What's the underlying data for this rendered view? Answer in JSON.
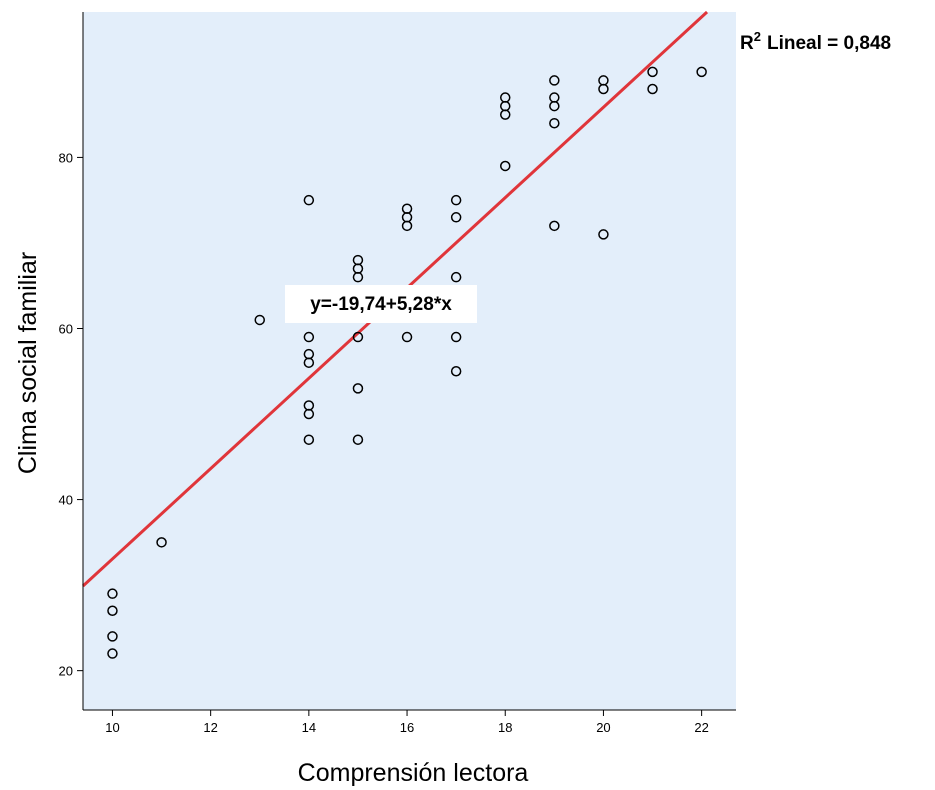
{
  "chart_data": {
    "type": "scatter",
    "xlabel": "Comprensión lectora",
    "ylabel": "Clima social familiar",
    "xlim": [
      9.4,
      22.7
    ],
    "ylim": [
      15.4,
      97.0
    ],
    "xticks": [
      10,
      12,
      14,
      16,
      18,
      20,
      22
    ],
    "yticks": [
      20,
      40,
      60,
      80
    ],
    "xtick_labels": [
      "10",
      "12",
      "14",
      "16",
      "18",
      "20",
      "22"
    ],
    "ytick_labels": [
      "20",
      "40",
      "60",
      "80"
    ],
    "grid": false,
    "background_color": "#e3eefa",
    "marker": "open-circle",
    "points": [
      {
        "x": 10,
        "y": 29
      },
      {
        "x": 10,
        "y": 27
      },
      {
        "x": 10,
        "y": 24
      },
      {
        "x": 10,
        "y": 22
      },
      {
        "x": 11,
        "y": 35
      },
      {
        "x": 13,
        "y": 61
      },
      {
        "x": 14,
        "y": 75
      },
      {
        "x": 14,
        "y": 64
      },
      {
        "x": 14,
        "y": 59
      },
      {
        "x": 14,
        "y": 57
      },
      {
        "x": 14,
        "y": 56
      },
      {
        "x": 14,
        "y": 51
      },
      {
        "x": 14,
        "y": 50
      },
      {
        "x": 14,
        "y": 47
      },
      {
        "x": 15,
        "y": 68
      },
      {
        "x": 15,
        "y": 67
      },
      {
        "x": 15,
        "y": 66
      },
      {
        "x": 15,
        "y": 64
      },
      {
        "x": 15,
        "y": 59
      },
      {
        "x": 15,
        "y": 53
      },
      {
        "x": 15,
        "y": 47
      },
      {
        "x": 16,
        "y": 74
      },
      {
        "x": 16,
        "y": 73
      },
      {
        "x": 16,
        "y": 72
      },
      {
        "x": 16,
        "y": 59
      },
      {
        "x": 17,
        "y": 75
      },
      {
        "x": 17,
        "y": 73
      },
      {
        "x": 17,
        "y": 66
      },
      {
        "x": 17,
        "y": 59
      },
      {
        "x": 17,
        "y": 55
      },
      {
        "x": 18,
        "y": 87
      },
      {
        "x": 18,
        "y": 86
      },
      {
        "x": 18,
        "y": 85
      },
      {
        "x": 18,
        "y": 79
      },
      {
        "x": 19,
        "y": 89
      },
      {
        "x": 19,
        "y": 87
      },
      {
        "x": 19,
        "y": 86
      },
      {
        "x": 19,
        "y": 84
      },
      {
        "x": 19,
        "y": 72
      },
      {
        "x": 20,
        "y": 89
      },
      {
        "x": 20,
        "y": 88
      },
      {
        "x": 20,
        "y": 71
      },
      {
        "x": 21,
        "y": 90
      },
      {
        "x": 21,
        "y": 88
      },
      {
        "x": 22,
        "y": 90
      }
    ],
    "fit_line": {
      "intercept": -19.74,
      "slope": 5.28,
      "color": "#e0353a",
      "equation_label": "y=-19,74+5,28*x"
    },
    "r2": {
      "prefix": "R",
      "superscript": "2",
      "label": "Lineal = 0,848"
    }
  }
}
